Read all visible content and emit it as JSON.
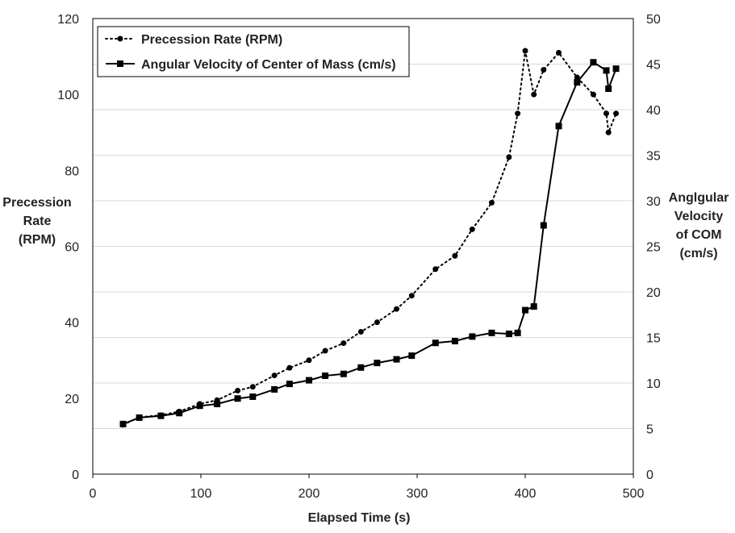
{
  "chart_data": {
    "type": "line",
    "xlabel": "Elapsed Time (s)",
    "ylabel_left": [
      "Precession",
      "Rate",
      "(RPM)"
    ],
    "ylabel_right": [
      "Anglgular",
      "Velocity",
      "of COM",
      "(cm/s)"
    ],
    "xlim": [
      0,
      500
    ],
    "ylim_left": [
      0,
      120
    ],
    "ylim_right": [
      0,
      50
    ],
    "x_ticks": [
      0,
      100,
      200,
      300,
      400,
      500
    ],
    "y_ticks_left": [
      0,
      20,
      40,
      60,
      80,
      100,
      120
    ],
    "y_ticks_right": [
      0,
      5,
      10,
      15,
      20,
      25,
      30,
      35,
      40,
      45,
      50
    ],
    "grid": true,
    "legend_position": "top-left",
    "series": [
      {
        "name": "Precession Rate (RPM)",
        "axis": "left",
        "line_style": "dotted",
        "marker": "circle",
        "color": "#000000",
        "x": [
          28,
          43,
          63,
          80,
          99,
          115,
          134,
          148,
          168,
          182,
          200,
          215,
          232,
          248,
          263,
          281,
          295,
          317,
          335,
          351,
          369,
          385,
          393,
          400,
          408,
          417,
          431,
          448,
          463,
          475,
          477,
          484
        ],
        "y": [
          13.0,
          15.0,
          15.5,
          16.5,
          18.5,
          19.5,
          22.0,
          23.0,
          26.0,
          28.0,
          30.0,
          32.5,
          34.5,
          37.5,
          40.0,
          43.5,
          47.0,
          54.0,
          57.5,
          64.5,
          71.5,
          83.5,
          95.0,
          111.5,
          100.0,
          106.5,
          111.0,
          104.5,
          100.0,
          95.0,
          90.0,
          95.0
        ]
      },
      {
        "name": "Angular Velocity of Center of Mass (cm/s)",
        "axis": "right",
        "line_style": "solid",
        "marker": "square",
        "color": "#000000",
        "x": [
          28,
          43,
          63,
          80,
          99,
          115,
          134,
          148,
          168,
          182,
          200,
          215,
          232,
          248,
          263,
          281,
          295,
          317,
          335,
          351,
          369,
          385,
          393,
          400,
          408,
          417,
          431,
          448,
          463,
          475,
          477,
          484
        ],
        "y": [
          5.5,
          6.2,
          6.4,
          6.7,
          7.5,
          7.7,
          8.3,
          8.5,
          9.3,
          9.9,
          10.3,
          10.8,
          11.0,
          11.7,
          12.2,
          12.6,
          13.0,
          14.4,
          14.6,
          15.1,
          15.5,
          15.4,
          15.5,
          18.0,
          18.4,
          27.3,
          38.2,
          43.0,
          45.2,
          44.3,
          42.3,
          44.5
        ]
      }
    ]
  }
}
